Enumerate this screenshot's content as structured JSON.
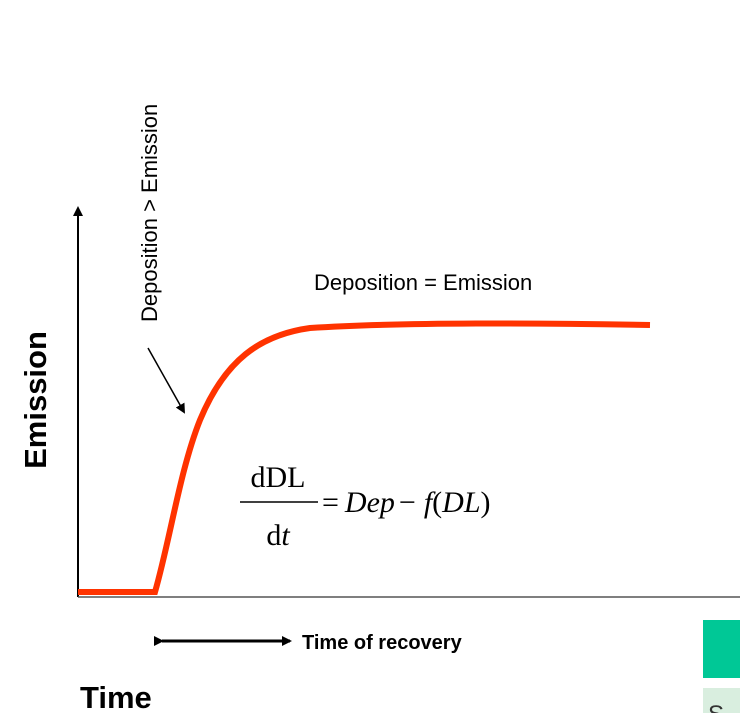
{
  "labels": {
    "y_axis": "Emission",
    "x_axis": "Time",
    "rising": "Deposition > Emission",
    "plateau": "Deposition = Emission",
    "recovery": "Time of recovery"
  },
  "equation": {
    "numerator": "dDL",
    "denominator": [
      "d",
      "t"
    ],
    "rhs": [
      "=",
      "Dep",
      "−",
      "f",
      "(",
      "DL",
      ")"
    ]
  },
  "side_panel": {
    "text": "S"
  }
}
